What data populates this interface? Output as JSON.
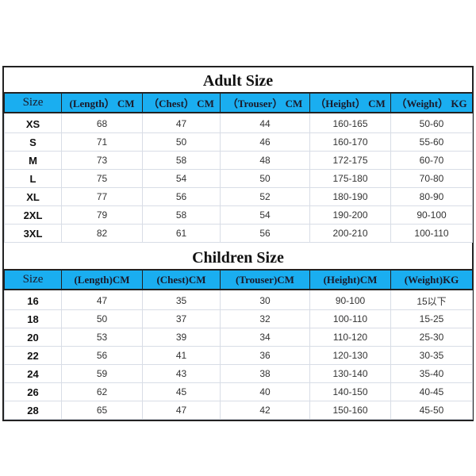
{
  "adult": {
    "title": "Adult Size",
    "headers": [
      "Size",
      "(Length） CM",
      "（Chest） CM",
      "（Trouser） CM",
      "（Height） CM",
      "（Weight） KG"
    ],
    "rows": [
      [
        "XS",
        "68",
        "47",
        "44",
        "160-165",
        "50-60"
      ],
      [
        "S",
        "71",
        "50",
        "46",
        "160-170",
        "55-60"
      ],
      [
        "M",
        "73",
        "58",
        "48",
        "172-175",
        "60-70"
      ],
      [
        "L",
        "75",
        "54",
        "50",
        "175-180",
        "70-80"
      ],
      [
        "XL",
        "77",
        "56",
        "52",
        "180-190",
        "80-90"
      ],
      [
        "2XL",
        "79",
        "58",
        "54",
        "190-200",
        "90-100"
      ],
      [
        "3XL",
        "82",
        "61",
        "56",
        "200-210",
        "100-110"
      ]
    ]
  },
  "children": {
    "title": "Children Size",
    "headers": [
      "Size",
      "(Length)CM",
      "(Chest)CM",
      "(Trouser)CM",
      "(Height)CM",
      "(Weight)KG"
    ],
    "rows": [
      [
        "16",
        "47",
        "35",
        "30",
        "90-100",
        "15以下"
      ],
      [
        "18",
        "50",
        "37",
        "32",
        "100-110",
        "15-25"
      ],
      [
        "20",
        "53",
        "39",
        "34",
        "110-120",
        "25-30"
      ],
      [
        "22",
        "56",
        "41",
        "36",
        "120-130",
        "30-35"
      ],
      [
        "24",
        "59",
        "43",
        "38",
        "130-140",
        "35-40"
      ],
      [
        "26",
        "62",
        "45",
        "40",
        "140-150",
        "40-45"
      ],
      [
        "28",
        "65",
        "47",
        "42",
        "150-160",
        "45-50"
      ]
    ]
  },
  "colors": {
    "header_bg": "#1aaef0"
  }
}
